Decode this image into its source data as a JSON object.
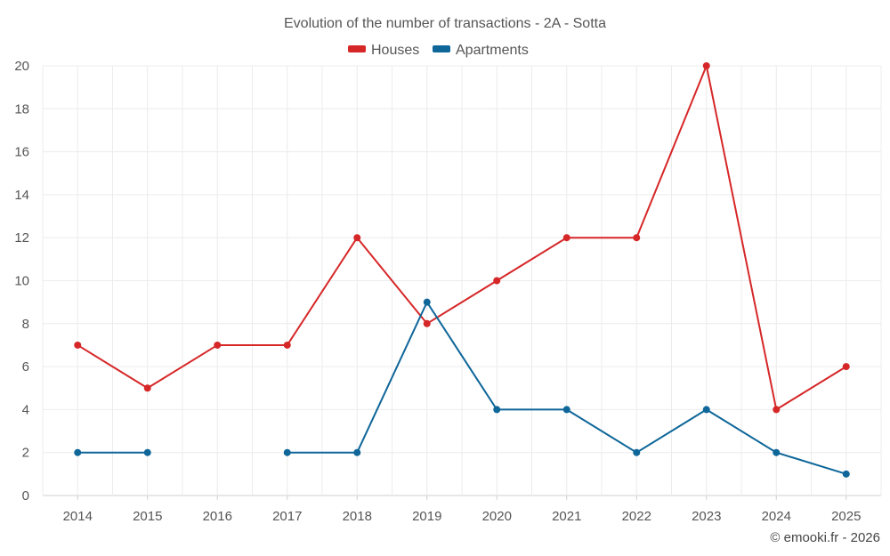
{
  "chart_data": {
    "type": "line",
    "title": "Evolution of the number of transactions - 2A - Sotta",
    "categories": [
      "2014",
      "2015",
      "2016",
      "2017",
      "2018",
      "2019",
      "2020",
      "2021",
      "2022",
      "2023",
      "2024",
      "2025"
    ],
    "ylim": [
      0,
      20
    ],
    "yticks": [
      0,
      2,
      4,
      6,
      8,
      10,
      12,
      14,
      16,
      18,
      20
    ],
    "grid": true,
    "legend_position": "top-center",
    "xlabel": "",
    "ylabel": "",
    "series": [
      {
        "name": "Houses",
        "color": "#d62728",
        "values": [
          7,
          5,
          7,
          7,
          12,
          8,
          10,
          12,
          12,
          20,
          4,
          6
        ]
      },
      {
        "name": "Apartments",
        "color": "#0e6699",
        "values": [
          2,
          2,
          null,
          2,
          2,
          9,
          4,
          4,
          2,
          4,
          2,
          1
        ]
      }
    ],
    "credit": "© emooki.fr - 2026"
  }
}
